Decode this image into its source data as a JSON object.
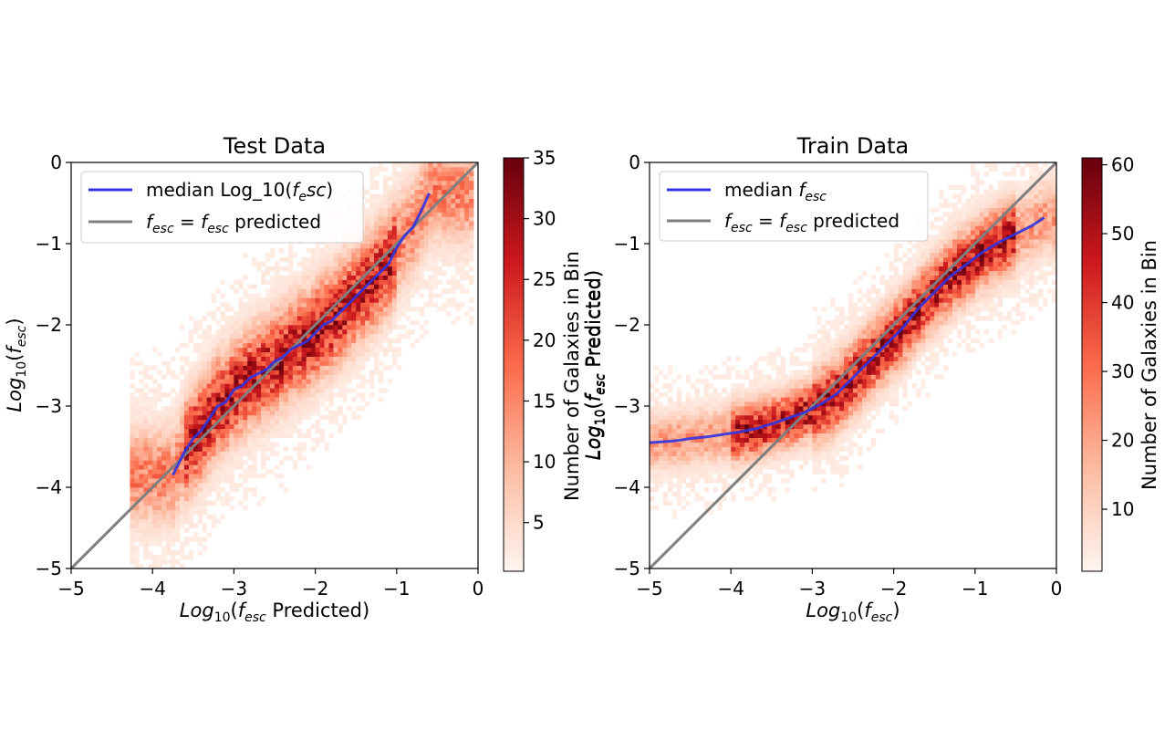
{
  "chart_data": [
    {
      "type": "heatmap",
      "title": "Test Data",
      "xlabel": "Log10(fesc Predicted)",
      "ylabel": "Log10(fesc)",
      "xlim": [
        -5,
        0
      ],
      "ylim": [
        -5,
        0
      ],
      "x_ticks": [
        "−5",
        "−4",
        "−3",
        "−2",
        "−1",
        "0"
      ],
      "y_ticks": [
        "−5",
        "−4",
        "−3",
        "−2",
        "−1",
        "0"
      ],
      "colormap": "Reds",
      "colorbar": {
        "label": "Number of Galaxies in Bin",
        "min": 1,
        "max": 35,
        "ticks": [
          "5",
          "10",
          "15",
          "20",
          "25",
          "30",
          "35"
        ]
      },
      "legend": {
        "placement": "upper-left",
        "entries": [
          {
            "label": "median Log_10(fesc)",
            "color": "#3333dd"
          },
          {
            "label": "fesc = fesc predicted",
            "color": "#7f7f7f"
          }
        ]
      },
      "series": [
        {
          "name": "median Log_10(fesc)",
          "x": [
            -3.75,
            -3.6,
            -3.5,
            -3.4,
            -3.3,
            -3.2,
            -3.1,
            -3.0,
            -2.9,
            -2.8,
            -2.7,
            -2.6,
            -2.5,
            -2.4,
            -2.3,
            -2.2,
            -2.1,
            -2.0,
            -1.9,
            -1.8,
            -1.7,
            -1.6,
            -1.5,
            -1.4,
            -1.3,
            -1.2,
            -1.1,
            -1.0,
            -0.9,
            -0.8,
            -0.7,
            -0.6
          ],
          "y": [
            -3.85,
            -3.55,
            -3.4,
            -3.3,
            -3.15,
            -3.0,
            -2.95,
            -2.8,
            -2.75,
            -2.65,
            -2.6,
            -2.55,
            -2.45,
            -2.4,
            -2.3,
            -2.25,
            -2.2,
            -2.1,
            -2.0,
            -1.95,
            -1.85,
            -1.75,
            -1.65,
            -1.55,
            -1.45,
            -1.35,
            -1.25,
            -1.05,
            -0.9,
            -0.8,
            -0.6,
            -0.38
          ]
        },
        {
          "name": "fesc = fesc predicted",
          "x": [
            -5,
            0
          ],
          "y": [
            -5,
            0
          ]
        }
      ]
    },
    {
      "type": "heatmap",
      "title": "Train Data",
      "xlabel": "Log10(fesc)",
      "ylabel": "Log10(fesc Predicted)",
      "xlim": [
        -5,
        0
      ],
      "ylim": [
        -5,
        0
      ],
      "x_ticks": [
        "−5",
        "−4",
        "−3",
        "−2",
        "−1",
        "0"
      ],
      "y_ticks": [
        "−5",
        "−4",
        "−3",
        "−2",
        "−1",
        "0"
      ],
      "colormap": "Reds",
      "colorbar": {
        "label": "Number of Galaxies in Bin",
        "min": 1,
        "max": 61,
        "ticks": [
          "10",
          "20",
          "30",
          "40",
          "50",
          "60"
        ]
      },
      "legend": {
        "placement": "upper-left",
        "entries": [
          {
            "label": "median fesc",
            "color": "#3333dd"
          },
          {
            "label": "fesc = fesc predicted",
            "color": "#7f7f7f"
          }
        ]
      },
      "series": [
        {
          "name": "median fesc",
          "x": [
            -5.0,
            -4.7,
            -4.5,
            -4.3,
            -4.1,
            -3.9,
            -3.7,
            -3.5,
            -3.3,
            -3.1,
            -2.9,
            -2.7,
            -2.5,
            -2.3,
            -2.1,
            -1.9,
            -1.7,
            -1.5,
            -1.3,
            -1.1,
            -0.9,
            -0.7,
            -0.5,
            -0.3,
            -0.15
          ],
          "y": [
            -3.45,
            -3.43,
            -3.4,
            -3.38,
            -3.35,
            -3.32,
            -3.28,
            -3.22,
            -3.15,
            -3.08,
            -2.98,
            -2.85,
            -2.65,
            -2.45,
            -2.25,
            -2.05,
            -1.8,
            -1.6,
            -1.4,
            -1.25,
            -1.1,
            -0.98,
            -0.88,
            -0.78,
            -0.68
          ]
        },
        {
          "name": "fesc = fesc predicted",
          "x": [
            -5,
            0
          ],
          "y": [
            -5,
            0
          ]
        }
      ]
    }
  ]
}
